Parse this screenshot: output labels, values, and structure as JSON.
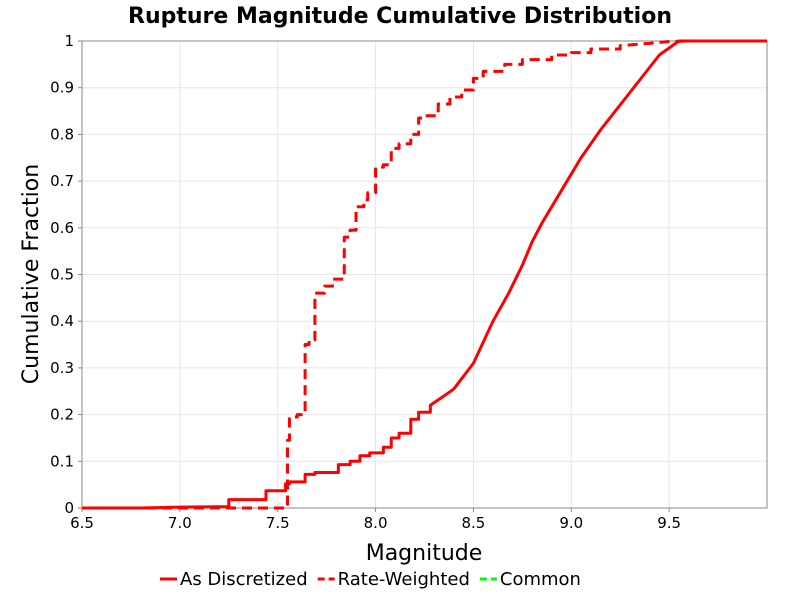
{
  "chart_data": {
    "type": "line",
    "title": "Rupture Magnitude Cumulative Distribution",
    "xlabel": "Magnitude",
    "ylabel": "Cumulative Fraction",
    "xlim": [
      6.5,
      10.0
    ],
    "ylim": [
      0,
      1
    ],
    "x_ticks": [
      "6.5",
      "7.0",
      "7.5",
      "8.0",
      "8.5",
      "9.0",
      "9.5"
    ],
    "y_ticks": [
      "0",
      "0.1",
      "0.2",
      "0.3",
      "0.4",
      "0.5",
      "0.6",
      "0.7",
      "0.8",
      "0.9",
      "1"
    ],
    "grid": true,
    "legend_position": "bottom",
    "series": [
      {
        "name": "As Discretized",
        "color": "#ff0000",
        "style": "solid",
        "x": [
          6.5,
          6.8,
          7.0,
          7.25,
          7.25,
          7.44,
          7.44,
          7.54,
          7.54,
          7.56,
          7.56,
          7.64,
          7.64,
          7.69,
          7.69,
          7.81,
          7.81,
          7.87,
          7.87,
          7.92,
          7.92,
          7.97,
          7.97,
          8.04,
          8.04,
          8.08,
          8.08,
          8.12,
          8.12,
          8.18,
          8.18,
          8.22,
          8.22,
          8.28,
          8.28,
          8.35,
          8.4,
          8.5,
          8.55,
          8.6,
          8.68,
          8.75,
          8.8,
          8.85,
          8.95,
          9.05,
          9.15,
          9.3,
          9.45,
          9.55,
          9.6,
          9.7,
          10.0
        ],
        "y": [
          0.0,
          0.0,
          0.002,
          0.003,
          0.018,
          0.018,
          0.037,
          0.037,
          0.052,
          0.052,
          0.056,
          0.056,
          0.072,
          0.072,
          0.076,
          0.076,
          0.093,
          0.093,
          0.1,
          0.1,
          0.112,
          0.112,
          0.118,
          0.118,
          0.13,
          0.13,
          0.15,
          0.15,
          0.16,
          0.16,
          0.19,
          0.19,
          0.205,
          0.205,
          0.22,
          0.24,
          0.255,
          0.31,
          0.355,
          0.4,
          0.46,
          0.52,
          0.57,
          0.61,
          0.68,
          0.75,
          0.81,
          0.89,
          0.97,
          1.0,
          1.0,
          1.0,
          1.0
        ]
      },
      {
        "name": "Rate-Weighted",
        "color": "#ff0000",
        "style": "dashed",
        "x": [
          6.5,
          7.25,
          7.25,
          7.55,
          7.55,
          7.56,
          7.56,
          7.6,
          7.6,
          7.64,
          7.64,
          7.66,
          7.66,
          7.69,
          7.69,
          7.74,
          7.74,
          7.78,
          7.78,
          7.84,
          7.84,
          7.87,
          7.87,
          7.9,
          7.9,
          7.94,
          7.94,
          7.96,
          7.96,
          8.0,
          8.0,
          8.04,
          8.04,
          8.08,
          8.08,
          8.12,
          8.12,
          8.18,
          8.18,
          8.22,
          8.22,
          8.25,
          8.25,
          8.32,
          8.32,
          8.38,
          8.38,
          8.44,
          8.44,
          8.5,
          8.5,
          8.55,
          8.55,
          8.66,
          8.66,
          8.75,
          8.75,
          8.9,
          8.9,
          9.0,
          9.0,
          9.1,
          9.1,
          9.25,
          9.25,
          9.4,
          9.5,
          9.6,
          10.0
        ],
        "y": [
          0.0,
          0.0,
          0.0,
          0.0,
          0.145,
          0.145,
          0.195,
          0.195,
          0.2,
          0.2,
          0.35,
          0.35,
          0.36,
          0.36,
          0.46,
          0.46,
          0.475,
          0.475,
          0.49,
          0.49,
          0.58,
          0.58,
          0.595,
          0.595,
          0.645,
          0.645,
          0.66,
          0.66,
          0.675,
          0.675,
          0.73,
          0.73,
          0.735,
          0.735,
          0.77,
          0.77,
          0.78,
          0.78,
          0.8,
          0.8,
          0.835,
          0.835,
          0.84,
          0.84,
          0.865,
          0.865,
          0.88,
          0.88,
          0.895,
          0.895,
          0.92,
          0.92,
          0.935,
          0.935,
          0.95,
          0.95,
          0.96,
          0.96,
          0.97,
          0.97,
          0.975,
          0.975,
          0.983,
          0.983,
          0.99,
          0.995,
          0.999,
          1.0,
          1.0
        ]
      },
      {
        "name": "Common",
        "color": "#00ff00",
        "style": "dashed",
        "x": [],
        "y": []
      }
    ]
  }
}
